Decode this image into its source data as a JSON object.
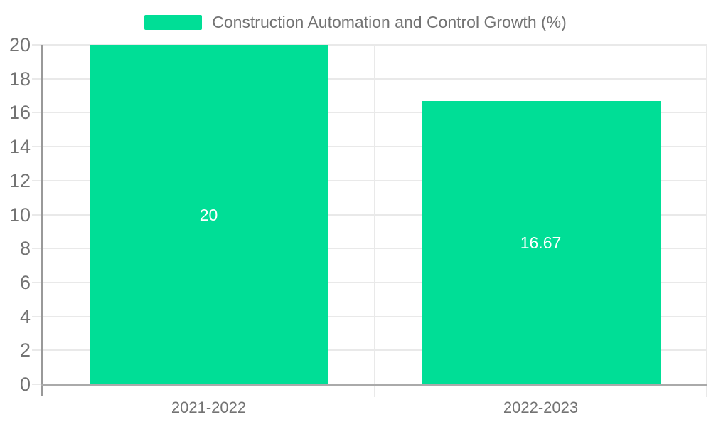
{
  "chart": {
    "legend_label": "Construction Automation and Control Growth (%)"
  },
  "chart_data": {
    "type": "bar",
    "title": "Construction Automation and Control Growth (%)",
    "categories": [
      "2021-2022",
      "2022-2023"
    ],
    "values": [
      20,
      16.67
    ],
    "value_labels": [
      "20",
      "16.67"
    ],
    "xlabel": "",
    "ylabel": "",
    "ylim": [
      0,
      20
    ],
    "ytick_step": 2,
    "ytick_labels": [
      "0",
      "2",
      "4",
      "6",
      "8",
      "10",
      "12",
      "14",
      "16",
      "18",
      "20"
    ],
    "grid": true,
    "legend_position": "top-center",
    "bar_color": "#00DE96",
    "value_label_color": "#FFFFFF",
    "tick_label_color": "#737373"
  }
}
